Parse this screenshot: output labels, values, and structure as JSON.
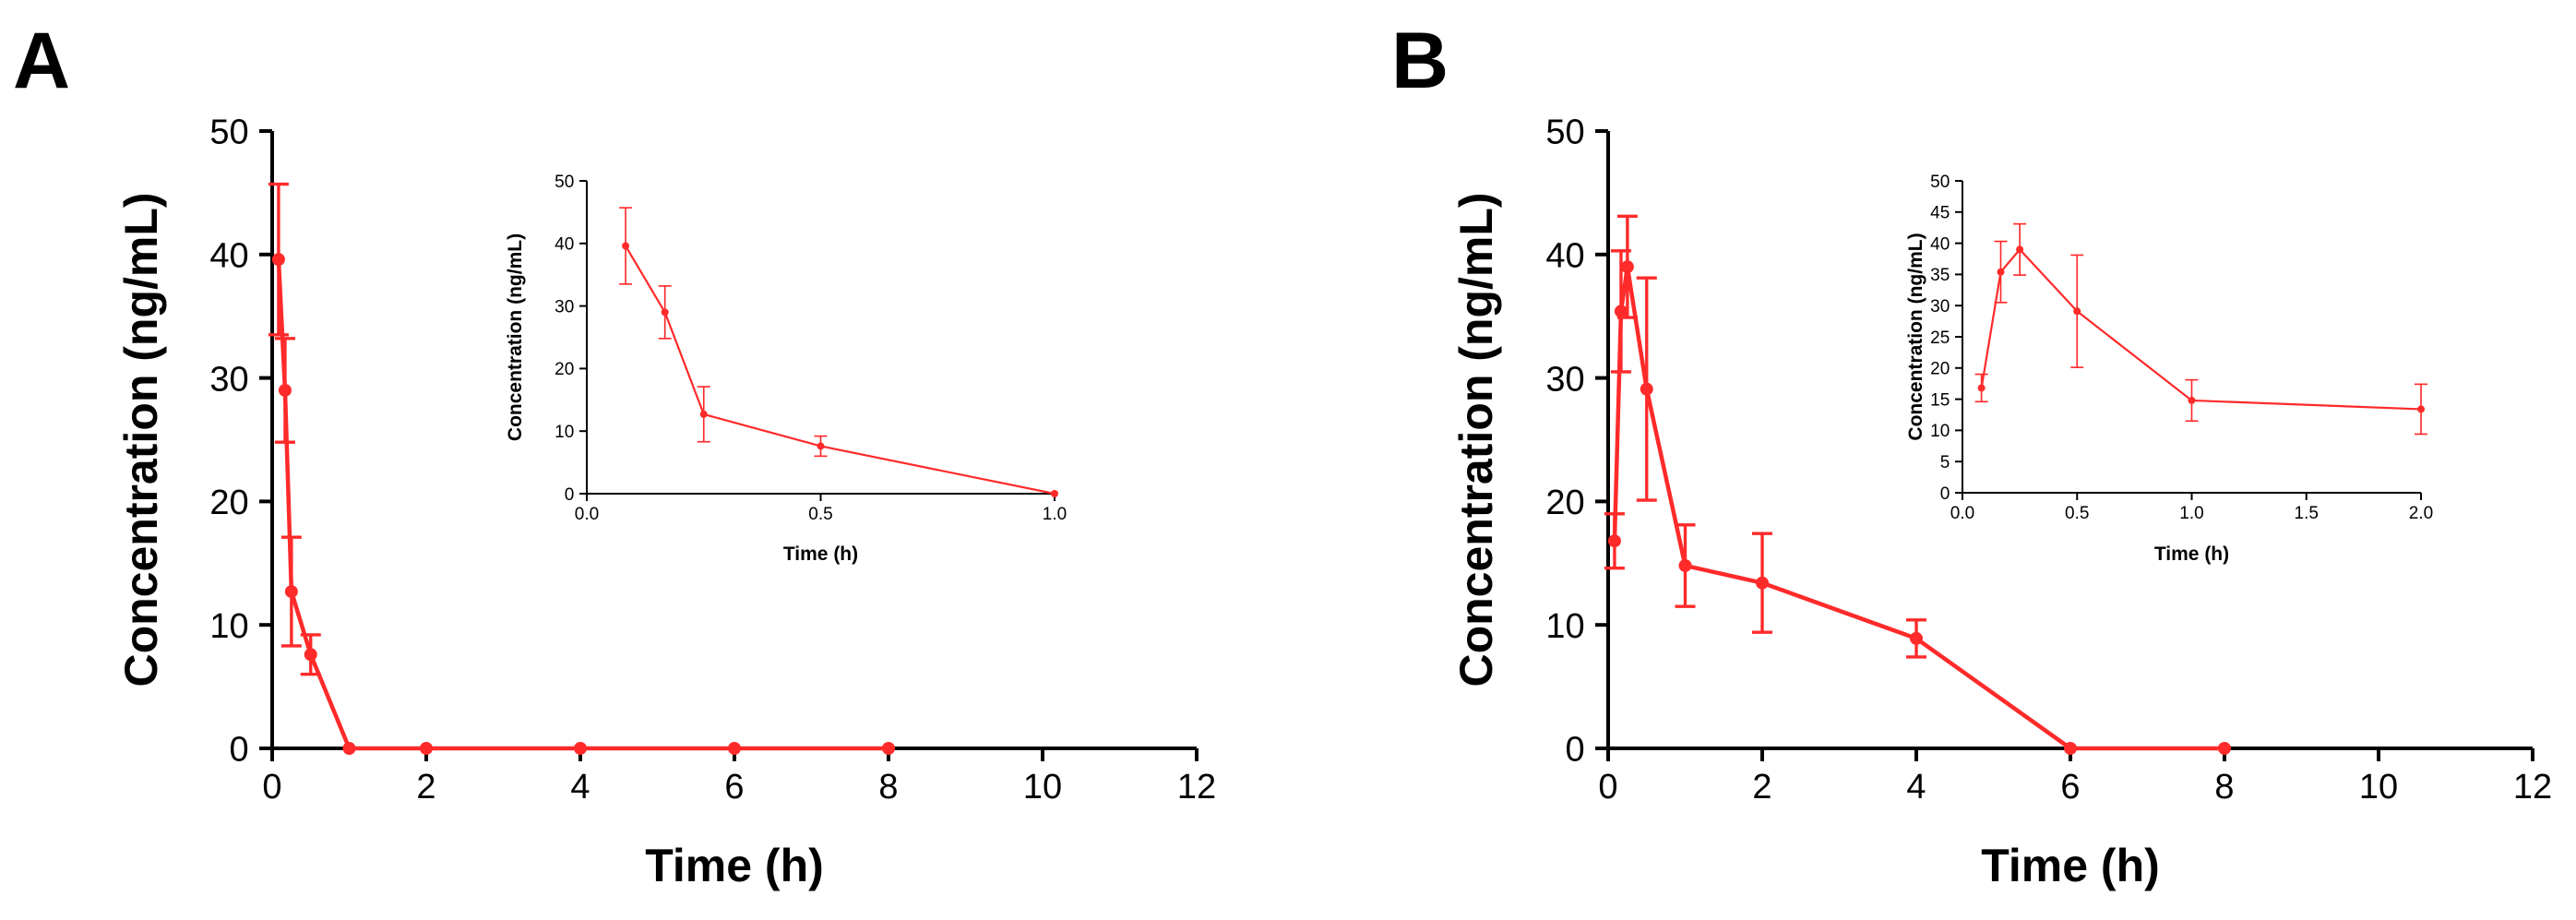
{
  "colors": {
    "series": "#ff2a2a",
    "axis": "#000000"
  },
  "chart_data": [
    {
      "panel": "A",
      "type": "line",
      "xlabel": "Time (h)",
      "ylabel": "Concentration (ng/mL)",
      "xlim": [
        0,
        12
      ],
      "ylim": [
        0,
        50
      ],
      "xticks": [
        0,
        2,
        4,
        6,
        8,
        10,
        12
      ],
      "yticks": [
        0,
        10,
        20,
        30,
        40,
        50
      ],
      "grid": false,
      "series": [
        {
          "name": "Concentration",
          "x": [
            0.083,
            0.167,
            0.25,
            0.5,
            1,
            2,
            4,
            6,
            8
          ],
          "y": [
            39.6,
            29.0,
            12.7,
            7.6,
            0,
            0,
            0,
            0,
            0
          ],
          "error": [
            6.1,
            4.2,
            4.4,
            1.6,
            0,
            0,
            0,
            0,
            0
          ]
        }
      ],
      "inset": {
        "xlabel": "Time (h)",
        "ylabel": "Concentration (ng/mL)",
        "xlim": [
          0,
          1
        ],
        "ylim": [
          0,
          50
        ],
        "xticks": [
          "0.0",
          "0.5",
          "1.0"
        ],
        "yticks": [
          0,
          10,
          20,
          30,
          40,
          50
        ],
        "x": [
          0.083,
          0.167,
          0.25,
          0.5,
          1.0
        ],
        "y": [
          39.6,
          29.0,
          12.7,
          7.6,
          0
        ],
        "error": [
          6.1,
          4.2,
          4.4,
          1.6,
          0
        ]
      }
    },
    {
      "panel": "B",
      "type": "line",
      "xlabel": "Time (h)",
      "ylabel": "Concentration (ng/mL)",
      "xlim": [
        0,
        12
      ],
      "ylim": [
        0,
        50
      ],
      "xticks": [
        0,
        2,
        4,
        6,
        8,
        10,
        12
      ],
      "yticks": [
        0,
        10,
        20,
        30,
        40,
        50
      ],
      "grid": false,
      "series": [
        {
          "name": "Concentration",
          "x": [
            0.083,
            0.167,
            0.25,
            0.5,
            1,
            2,
            4,
            6,
            8
          ],
          "y": [
            16.8,
            35.4,
            39.0,
            29.1,
            14.8,
            13.4,
            8.9,
            0,
            0
          ],
          "error": [
            2.2,
            4.9,
            4.1,
            9.0,
            3.3,
            4.0,
            1.5,
            0,
            0
          ]
        }
      ],
      "inset": {
        "xlabel": "Time (h)",
        "ylabel": "Concentration (ng/mL)",
        "xlim": [
          0,
          2
        ],
        "ylim": [
          0,
          50
        ],
        "xticks": [
          "0.0",
          "0.5",
          "1.0",
          "1.5",
          "2.0"
        ],
        "yticks": [
          0,
          5,
          10,
          15,
          20,
          25,
          30,
          35,
          40,
          45,
          50
        ],
        "x": [
          0.083,
          0.167,
          0.25,
          0.5,
          1.0,
          2.0
        ],
        "y": [
          16.8,
          35.4,
          39.0,
          29.1,
          14.8,
          13.4
        ],
        "error": [
          2.2,
          4.9,
          4.1,
          9.0,
          3.3,
          4.0
        ]
      }
    }
  ]
}
